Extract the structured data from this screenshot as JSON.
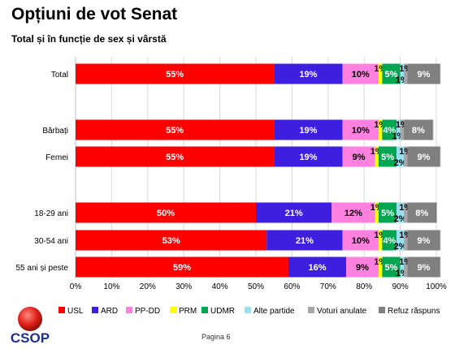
{
  "header": {
    "title": "Opțiuni de vot Senat",
    "subtitle": "Total și în funcție de sex și vârstă"
  },
  "footer": {
    "logo_text": "CSOP",
    "page_label": "Pagina 6"
  },
  "chart_data": {
    "type": "bar",
    "orientation": "horizontal",
    "stacked": true,
    "percent_stacked": true,
    "title": "Opțiuni de vot Senat",
    "subtitle": "Total și în funcție de sex și vârstă",
    "xlim": [
      0,
      100
    ],
    "x_ticks": [
      "0%",
      "10%",
      "20%",
      "30%",
      "40%",
      "50%",
      "60%",
      "70%",
      "80%",
      "90%",
      "100%"
    ],
    "grid": true,
    "legend_position": "bottom",
    "categories": [
      "Total",
      "Bărbați",
      "Femei",
      "18-29 ani",
      "30-54 ani",
      "55 ani și peste"
    ],
    "groups": [
      [
        "Total"
      ],
      [
        "Bărbați",
        "Femei"
      ],
      [
        "18-29 ani",
        "30-54 ani",
        "55 ani și peste"
      ]
    ],
    "series": [
      {
        "name": "USL",
        "color": "#ff0000",
        "values": [
          55,
          55,
          55,
          50,
          53,
          59
        ],
        "labels": [
          "55%",
          "55%",
          "55%",
          "50%",
          "53%",
          "59%"
        ]
      },
      {
        "name": "ARD",
        "color": "#3f1fdf",
        "values": [
          19,
          19,
          19,
          21,
          21,
          16
        ],
        "labels": [
          "19%",
          "19%",
          "19%",
          "21%",
          "21%",
          "16%"
        ]
      },
      {
        "name": "PP-DD",
        "color": "#ff80df",
        "values": [
          10,
          10,
          9,
          12,
          10,
          9
        ],
        "labels": [
          "10%",
          "10%",
          "9%",
          "12%",
          "10%",
          "9%"
        ]
      },
      {
        "name": "PRM",
        "color": "#ffff00",
        "values": [
          1,
          1,
          1,
          1,
          1,
          1
        ],
        "labels": [
          "1%",
          "1%",
          "1%",
          "1%",
          "1%",
          "1%"
        ]
      },
      {
        "name": "UDMR",
        "color": "#00a651",
        "values": [
          5,
          4,
          5,
          5,
          4,
          5
        ],
        "labels": [
          "5%",
          "4%",
          "5%",
          "5%",
          "4%",
          "5%"
        ]
      },
      {
        "name": "Alte partide",
        "color": "#99dff2",
        "values": [
          1,
          1,
          2,
          2,
          2,
          1
        ],
        "labels": [
          "1%",
          "1%",
          "2%",
          "2%",
          "2%",
          "1%"
        ]
      },
      {
        "name": "Voturi anulate",
        "color": "#a6a6a6",
        "values": [
          1,
          1,
          1,
          1,
          1,
          1
        ],
        "labels": [
          "1%",
          "1%",
          "1%",
          "1%",
          "1%",
          "1%"
        ]
      },
      {
        "name": "Refuz răspuns",
        "color": "#808080",
        "values": [
          9,
          8,
          9,
          8,
          9,
          9
        ],
        "labels": [
          "9%",
          "8%",
          "9%",
          "8%",
          "9%",
          "9%"
        ]
      }
    ]
  }
}
